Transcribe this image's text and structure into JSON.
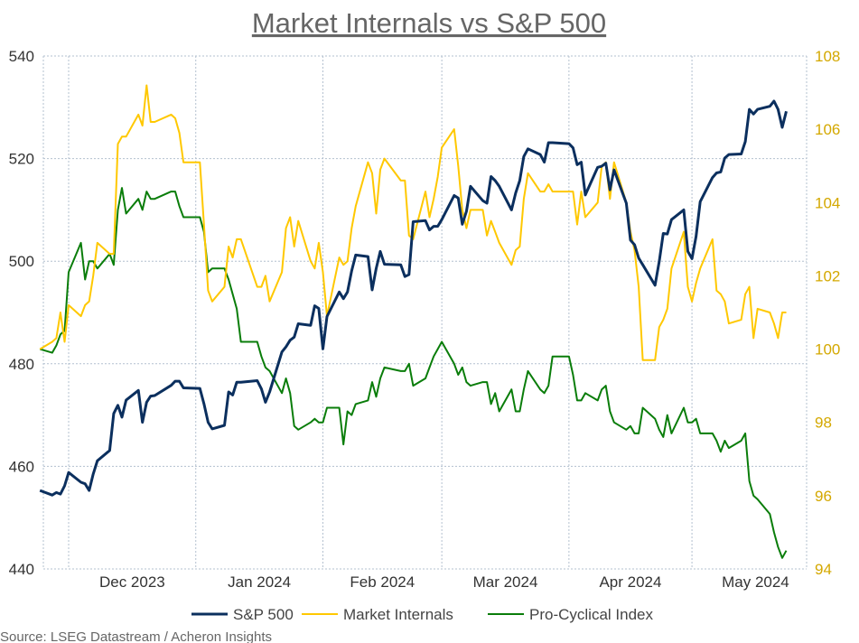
{
  "chart_data": {
    "type": "line",
    "title": "Market Internals vs S&P 500",
    "source": "Source: LSEG Datastream / Acheron Insights",
    "left_axis": {
      "ylim": [
        440,
        540
      ],
      "ticks": [
        440,
        460,
        480,
        500,
        520,
        540
      ]
    },
    "right_axis": {
      "ylim": [
        94,
        108
      ],
      "ticks": [
        94,
        96,
        98,
        100,
        102,
        104,
        106,
        108
      ],
      "color": "#d4a800"
    },
    "x_ticks": [
      {
        "label": "Dec 2023",
        "month": "2023-12"
      },
      {
        "label": "Jan 2024",
        "month": "2024-01"
      },
      {
        "label": "Feb 2024",
        "month": "2024-02"
      },
      {
        "label": "Mar 2024",
        "month": "2024-03"
      },
      {
        "label": "Apr 2024",
        "month": "2024-04"
      },
      {
        "label": "May 2024",
        "month": "2024-05"
      }
    ],
    "grid": true,
    "legend": "bottom",
    "x": [
      "2023-11-24",
      "2023-11-27",
      "2023-11-28",
      "2023-11-29",
      "2023-11-30",
      "2023-12-01",
      "2023-12-04",
      "2023-12-05",
      "2023-12-06",
      "2023-12-07",
      "2023-12-08",
      "2023-12-11",
      "2023-12-12",
      "2023-12-13",
      "2023-12-14",
      "2023-12-15",
      "2023-12-18",
      "2023-12-19",
      "2023-12-20",
      "2023-12-21",
      "2023-12-22",
      "2023-12-26",
      "2023-12-27",
      "2023-12-28",
      "2023-12-29",
      "2024-01-02",
      "2024-01-03",
      "2024-01-04",
      "2024-01-05",
      "2024-01-08",
      "2024-01-09",
      "2024-01-10",
      "2024-01-11",
      "2024-01-12",
      "2024-01-16",
      "2024-01-17",
      "2024-01-18",
      "2024-01-19",
      "2024-01-22",
      "2024-01-23",
      "2024-01-24",
      "2024-01-25",
      "2024-01-26",
      "2024-01-29",
      "2024-01-30",
      "2024-01-31",
      "2024-02-01",
      "2024-02-02",
      "2024-02-05",
      "2024-02-06",
      "2024-02-07",
      "2024-02-08",
      "2024-02-09",
      "2024-02-12",
      "2024-02-13",
      "2024-02-14",
      "2024-02-15",
      "2024-02-16",
      "2024-02-20",
      "2024-02-21",
      "2024-02-22",
      "2024-02-23",
      "2024-02-26",
      "2024-02-27",
      "2024-02-28",
      "2024-02-29",
      "2024-03-01",
      "2024-03-04",
      "2024-03-05",
      "2024-03-06",
      "2024-03-07",
      "2024-03-08",
      "2024-03-11",
      "2024-03-12",
      "2024-03-13",
      "2024-03-14",
      "2024-03-15",
      "2024-03-18",
      "2024-03-19",
      "2024-03-20",
      "2024-03-21",
      "2024-03-22",
      "2024-03-25",
      "2024-03-26",
      "2024-03-27",
      "2024-03-28",
      "2024-04-01",
      "2024-04-02",
      "2024-04-03",
      "2024-04-04",
      "2024-04-05",
      "2024-04-08",
      "2024-04-09",
      "2024-04-10",
      "2024-04-11",
      "2024-04-12",
      "2024-04-15",
      "2024-04-16",
      "2024-04-17",
      "2024-04-18",
      "2024-04-19",
      "2024-04-22",
      "2024-04-23",
      "2024-04-24",
      "2024-04-25",
      "2024-04-26",
      "2024-04-29",
      "2024-04-30",
      "2024-05-01",
      "2024-05-02",
      "2024-05-03",
      "2024-05-06",
      "2024-05-07",
      "2024-05-08",
      "2024-05-09",
      "2024-05-10",
      "2024-05-13",
      "2024-05-14",
      "2024-05-15",
      "2024-05-16",
      "2024-05-17",
      "2024-05-20",
      "2024-05-21",
      "2024-05-22",
      "2024-05-23",
      "2024-05-24"
    ],
    "series": [
      {
        "name": "S&P 500",
        "axis": "left",
        "color": "#0b2f5e",
        "values": [
          455.3,
          454.4,
          454.9,
          454.6,
          456.2,
          458.8,
          456.9,
          456.6,
          455.3,
          458.5,
          461.1,
          463.1,
          470.3,
          471.9,
          469.6,
          472.9,
          474.8,
          468.6,
          472.5,
          473.7,
          473.8,
          475.8,
          476.6,
          476.6,
          475.3,
          475.2,
          472.2,
          468.6,
          467.3,
          468.0,
          474.5,
          473.9,
          476.4,
          476.4,
          476.7,
          475.1,
          472.5,
          474.5,
          482.3,
          483.3,
          484.6,
          485.2,
          487.8,
          487.5,
          491.3,
          490.8,
          482.9,
          489.2,
          494.0,
          492.7,
          494.0,
          498.1,
          501.2,
          500.9,
          494.4,
          498.6,
          501.9,
          499.4,
          499.3,
          497.0,
          497.4,
          507.7,
          507.9,
          506.1,
          506.8,
          506.8,
          508.1,
          512.8,
          512.3,
          507.2,
          509.7,
          514.6,
          511.8,
          511.3,
          516.5,
          515.7,
          514.6,
          510.0,
          513.3,
          515.7,
          520.4,
          521.9,
          520.8,
          519.3,
          523.1,
          523.1,
          522.9,
          522.1,
          518.8,
          519.3,
          512.9,
          518.3,
          518.5,
          519.1,
          513.9,
          517.8,
          511.3,
          504.1,
          503.2,
          500.6,
          499.3,
          495.3,
          499.9,
          505.4,
          505.3,
          508.1,
          510.0,
          501.9,
          500.5,
          504.8,
          511.6,
          516.3,
          517.2,
          517.4,
          520.1,
          520.8,
          520.9,
          523.3,
          529.6,
          528.7,
          529.6,
          530.2,
          531.2,
          529.6,
          526.1,
          529.2
        ]
      },
      {
        "name": "Market Internals",
        "axis": "right",
        "color": "#ffc800",
        "values": [
          100.0,
          100.2,
          100.3,
          101.0,
          100.2,
          101.2,
          100.9,
          101.2,
          101.3,
          102.0,
          102.9,
          102.6,
          102.6,
          105.6,
          105.8,
          105.8,
          106.4,
          106.1,
          107.2,
          106.2,
          106.2,
          106.4,
          106.3,
          105.9,
          105.1,
          105.1,
          103.4,
          101.6,
          101.3,
          101.7,
          102.8,
          102.5,
          103.0,
          103.0,
          101.7,
          101.7,
          102.0,
          101.3,
          102.1,
          103.3,
          103.6,
          102.8,
          103.5,
          102.4,
          102.2,
          102.9,
          102.1,
          100.9,
          102.5,
          102.3,
          102.4,
          103.3,
          103.9,
          105.1,
          104.8,
          103.7,
          104.9,
          105.2,
          104.6,
          104.6,
          103.1,
          103.0,
          104.3,
          103.6,
          104.1,
          104.7,
          105.5,
          106.0,
          105.0,
          103.8,
          103.3,
          103.8,
          103.8,
          103.1,
          103.5,
          103.2,
          102.9,
          102.3,
          102.7,
          102.8,
          104.1,
          104.8,
          104.3,
          104.3,
          104.5,
          104.3,
          104.3,
          104.3,
          103.4,
          104.3,
          103.6,
          104.0,
          105.0,
          105.1,
          104.1,
          105.1,
          104.0,
          103.2,
          102.7,
          101.7,
          99.7,
          99.7,
          100.6,
          100.8,
          101.1,
          102.2,
          103.2,
          101.7,
          101.3,
          101.8,
          102.2,
          103.0,
          101.6,
          101.5,
          101.3,
          100.7,
          100.8,
          101.5,
          101.7,
          100.3,
          101.1,
          101.0,
          100.7,
          100.3,
          101.0,
          101.0
        ]
      },
      {
        "name": "Pro-Cyclical Index",
        "axis": "right",
        "color": "#0a7d0a",
        "values": [
          100.0,
          99.9,
          100.1,
          100.4,
          100.5,
          102.1,
          102.9,
          101.9,
          102.4,
          102.4,
          102.2,
          102.6,
          102.3,
          103.8,
          104.4,
          103.7,
          104.1,
          103.8,
          104.3,
          104.1,
          104.1,
          104.3,
          104.3,
          103.9,
          103.6,
          103.6,
          103.2,
          102.1,
          102.2,
          102.2,
          101.9,
          101.5,
          101.1,
          100.2,
          100.2,
          99.8,
          99.5,
          99.4,
          98.8,
          99.2,
          98.8,
          97.9,
          97.8,
          98.0,
          98.1,
          98.0,
          98.0,
          98.4,
          98.4,
          97.4,
          98.3,
          98.2,
          98.5,
          98.6,
          99.1,
          98.7,
          99.2,
          99.5,
          99.4,
          99.4,
          99.6,
          99.0,
          99.2,
          99.5,
          99.8,
          100.0,
          100.2,
          99.6,
          99.3,
          99.5,
          99.1,
          99.0,
          99.1,
          99.1,
          98.5,
          98.8,
          98.3,
          98.9,
          98.3,
          98.3,
          98.9,
          99.4,
          98.9,
          98.8,
          99.0,
          99.8,
          99.8,
          99.3,
          98.6,
          98.6,
          98.8,
          98.6,
          98.9,
          99.0,
          98.3,
          98.0,
          97.8,
          97.9,
          97.7,
          97.7,
          98.4,
          98.1,
          97.8,
          97.6,
          98.2,
          97.7,
          98.4,
          98.0,
          98.0,
          98.1,
          97.7,
          97.7,
          97.5,
          97.2,
          97.5,
          97.3,
          97.5,
          97.7,
          96.4,
          96.0,
          95.9,
          95.5,
          95.0,
          94.6,
          94.3,
          94.5
        ]
      }
    ]
  }
}
